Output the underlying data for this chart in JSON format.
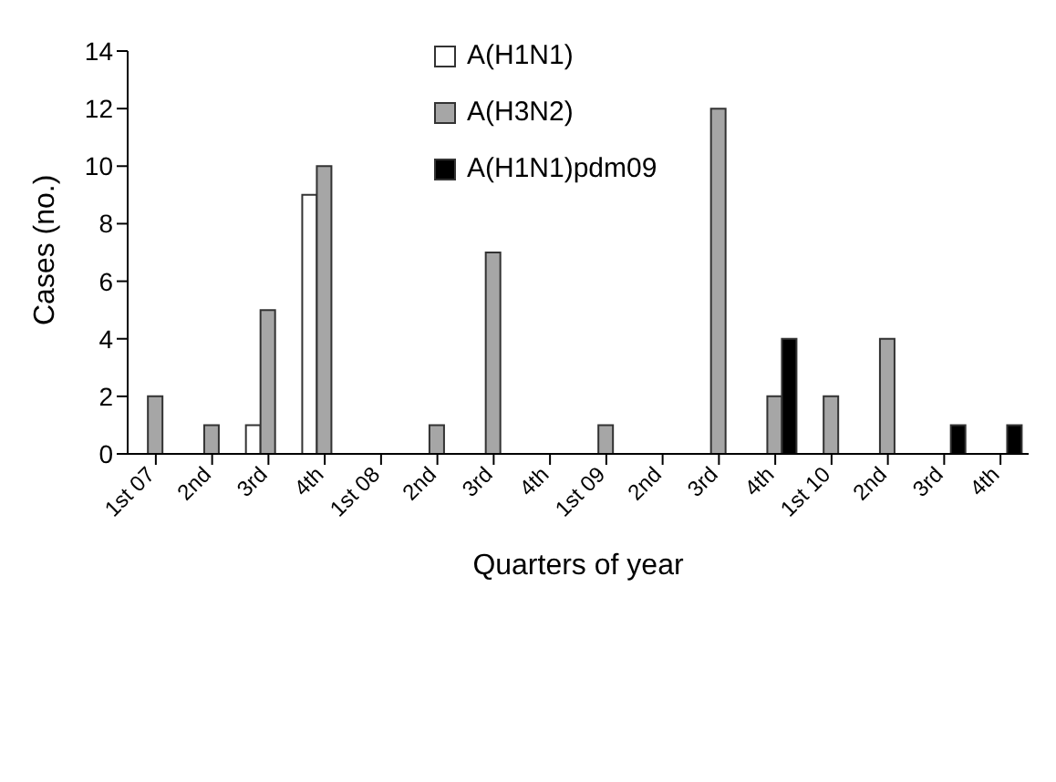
{
  "chart_data": {
    "type": "bar",
    "xlabel": "Quarters of year",
    "ylabel": "Cases (no.)",
    "categories": [
      "1st 07",
      "2nd",
      "3rd",
      "4th",
      "1st 08",
      "2nd",
      "3rd",
      "4th",
      "1st 09",
      "2nd",
      "3rd",
      "4th",
      "1st 10",
      "2nd",
      "3rd",
      "4th"
    ],
    "series": [
      {
        "name": "A(H1N1)",
        "color": "#ffffff",
        "values": [
          null,
          null,
          1,
          9,
          null,
          null,
          null,
          null,
          null,
          null,
          null,
          null,
          null,
          null,
          null,
          null
        ]
      },
      {
        "name": "A(H3N2)",
        "color": "#a6a6a6",
        "values": [
          2,
          1,
          5,
          10,
          null,
          1,
          7,
          null,
          1,
          null,
          12,
          2,
          2,
          4,
          null,
          null
        ]
      },
      {
        "name": "A(H1N1)pdm09",
        "color": "#000000",
        "values": [
          null,
          null,
          null,
          null,
          null,
          null,
          null,
          null,
          null,
          null,
          null,
          4,
          null,
          null,
          1,
          1
        ]
      }
    ],
    "ylim": [
      0,
      14
    ],
    "yticks": [
      0,
      2,
      4,
      6,
      8,
      10,
      12,
      14
    ],
    "grid": false,
    "legend": "top"
  }
}
